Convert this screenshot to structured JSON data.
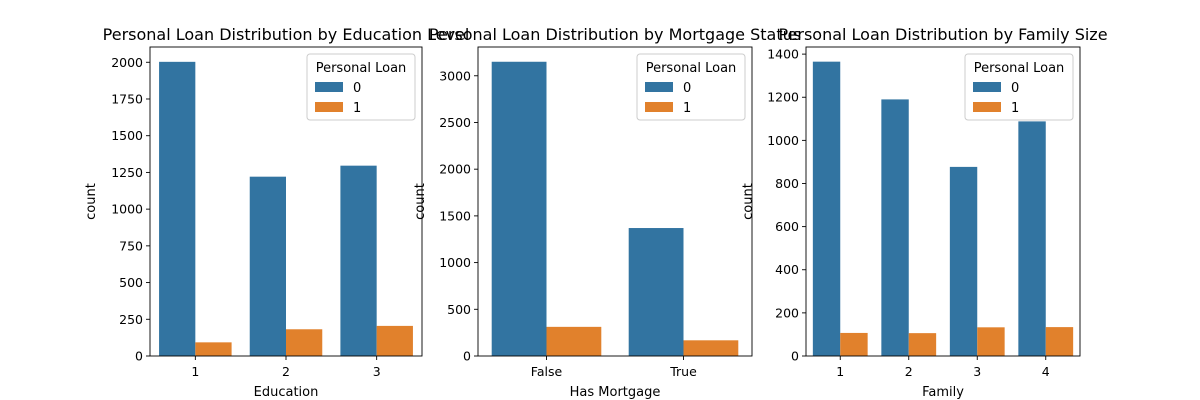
{
  "colors": {
    "loan_0": "#3274a1",
    "loan_1": "#e1812c"
  },
  "chart_data": [
    {
      "type": "bar",
      "title": "Personal Loan Distribution by Education Level",
      "xlabel": "Education",
      "ylabel": "count",
      "categories": [
        "1",
        "2",
        "3"
      ],
      "series": [
        {
          "name": "0",
          "values": [
            2003,
            1221,
            1296
          ]
        },
        {
          "name": "1",
          "values": [
            93,
            182,
            205
          ]
        }
      ],
      "ylim": [
        0,
        2104
      ],
      "yticks": [
        0,
        250,
        500,
        750,
        1000,
        1250,
        1500,
        1750,
        2000
      ],
      "legend": {
        "title": "Personal Loan",
        "placement": "top-right"
      }
    },
    {
      "type": "bar",
      "title": "Personal Loan Distribution by Mortgage Status",
      "xlabel": "Has Mortgage",
      "ylabel": "count",
      "categories": [
        "False",
        "True"
      ],
      "series": [
        {
          "name": "0",
          "values": [
            3150,
            1370
          ]
        },
        {
          "name": "1",
          "values": [
            312,
            168
          ]
        }
      ],
      "ylim": [
        0,
        3308
      ],
      "yticks": [
        0,
        500,
        1000,
        1500,
        2000,
        2500,
        3000
      ],
      "legend": {
        "title": "Personal Loan",
        "placement": "top-right"
      }
    },
    {
      "type": "bar",
      "title": "Personal Loan Distribution by Family Size",
      "xlabel": "Family",
      "ylabel": "count",
      "categories": [
        "1",
        "2",
        "3",
        "4"
      ],
      "series": [
        {
          "name": "0",
          "values": [
            1365,
            1190,
            877,
            1088
          ]
        },
        {
          "name": "1",
          "values": [
            107,
            106,
            133,
            134
          ]
        }
      ],
      "ylim": [
        0,
        1433
      ],
      "yticks": [
        0,
        200,
        400,
        600,
        800,
        1000,
        1200,
        1400
      ],
      "legend": {
        "title": "Personal Loan",
        "placement": "top-right"
      }
    }
  ]
}
